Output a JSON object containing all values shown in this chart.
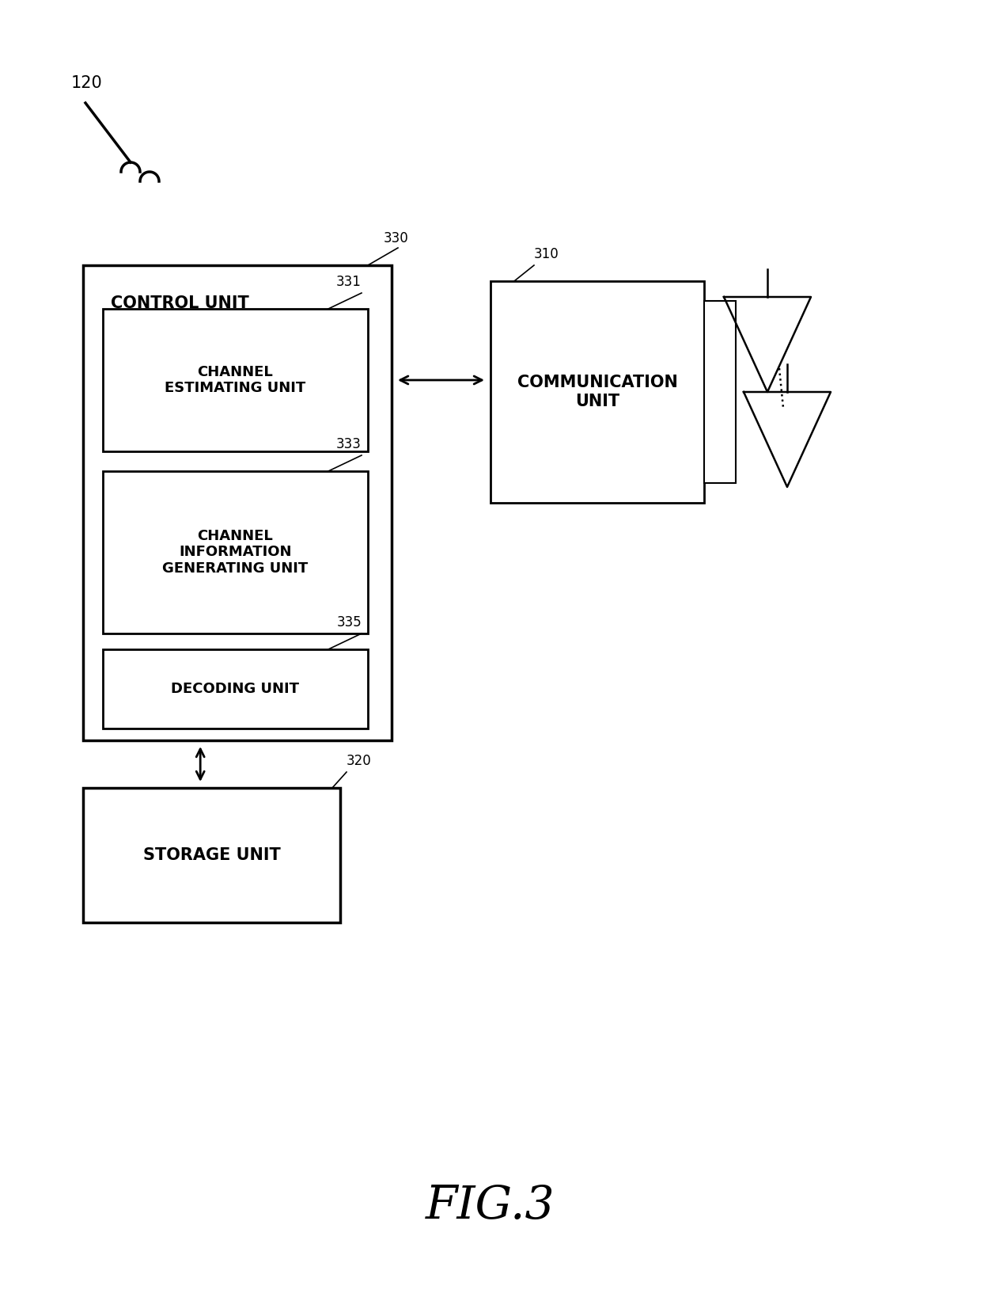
{
  "fig_label": "FIG.3",
  "bg_color": "#ffffff",
  "label_120": "120",
  "label_310": "310",
  "label_320": "320",
  "label_330": "330",
  "label_331": "331",
  "label_333": "333",
  "label_335": "335",
  "control_unit_label": "CONTROL UNIT",
  "comm_unit_label": "COMMUNICATION\nUNIT",
  "storage_unit_label": "STORAGE UNIT",
  "channel_est_label": "CHANNEL\nESTIMATING UNIT",
  "channel_info_label": "CHANNEL\nINFORMATION\nGENERATING UNIT",
  "decoding_label": "DECODING UNIT",
  "font_color": "#000000",
  "box_edge_color": "#000000"
}
